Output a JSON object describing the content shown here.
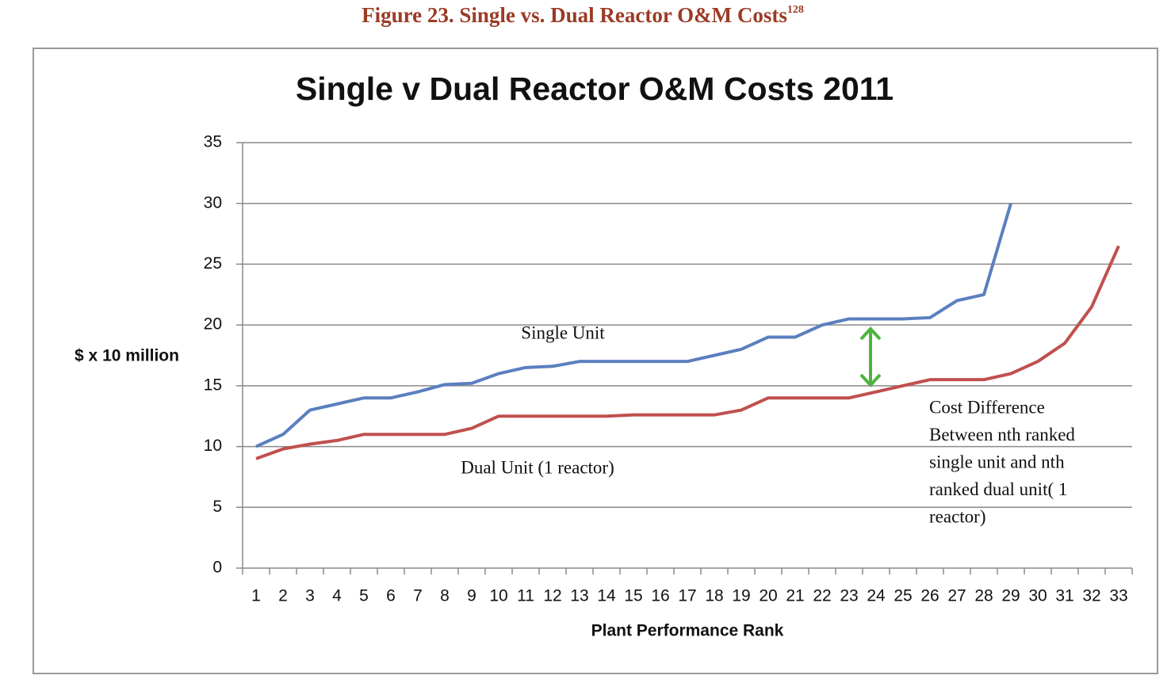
{
  "caption": "Figure 23. Single vs. Dual Reactor O&M Costs",
  "caption_note": "128",
  "chart_data": {
    "type": "line",
    "title": "Single v Dual Reactor O&M Costs 2011",
    "x_label": "Plant Performance Rank",
    "y_label": "$ x 10 million",
    "categories": [
      1,
      2,
      3,
      4,
      5,
      6,
      7,
      8,
      9,
      10,
      11,
      12,
      13,
      14,
      15,
      16,
      17,
      18,
      19,
      20,
      21,
      22,
      23,
      24,
      25,
      26,
      27,
      28,
      29,
      30,
      31,
      32,
      33
    ],
    "series": [
      {
        "name": "Single Unit",
        "color": "#5b7fbf",
        "values": [
          10,
          11,
          13,
          13.5,
          14,
          14,
          14.5,
          15.1,
          15.2,
          16,
          16.5,
          16.6,
          17,
          17,
          17,
          17,
          17,
          17.5,
          18,
          19,
          19,
          20,
          20.5,
          20.5,
          20.5,
          20.6,
          22,
          22.5,
          30,
          null,
          null,
          null,
          null
        ]
      },
      {
        "name": "Dual Unit (1 reactor)",
        "color": "#c0504d",
        "values": [
          9,
          9.8,
          10.2,
          10.5,
          11,
          11,
          11,
          11,
          11.5,
          12.5,
          12.5,
          12.5,
          12.5,
          12.5,
          12.6,
          12.6,
          12.6,
          12.6,
          13,
          14,
          14,
          14,
          14,
          14.5,
          15,
          15.5,
          15.5,
          15.5,
          16,
          17,
          18.5,
          21.5,
          26.5
        ]
      }
    ],
    "annotation": [
      "Cost Difference",
      "Between nth ranked",
      "single unit and nth",
      "ranked dual unit( 1",
      "reactor)"
    ],
    "ylim": [
      0,
      35
    ],
    "yticks": [
      0,
      5,
      10,
      15,
      20,
      25,
      30,
      35
    ],
    "grid": true
  }
}
